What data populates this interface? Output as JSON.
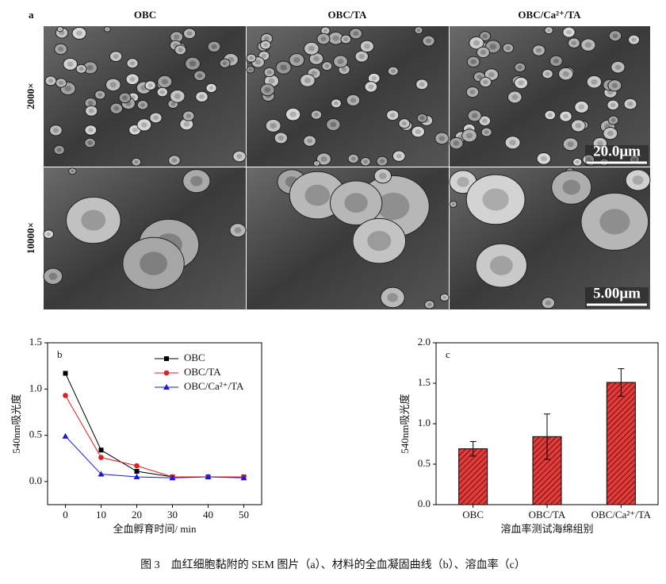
{
  "panel_a": {
    "label": "a",
    "columns": [
      "OBC",
      "OBC/TA",
      "OBC/Ca²⁺/TA"
    ],
    "rows": [
      "2000×",
      "10000×"
    ],
    "scale_bars": [
      "20.0μm",
      "5.00μm"
    ]
  },
  "chart_data": [
    {
      "type": "line",
      "label": "b",
      "x_label": "全血孵育时间/ min",
      "y_label": "540nm吸光度",
      "x": [
        0,
        10,
        20,
        30,
        40,
        50
      ],
      "series": [
        {
          "name": "OBC",
          "color": "#000000",
          "marker": "square",
          "values": [
            1.17,
            0.34,
            0.11,
            0.05,
            0.05,
            0.05
          ]
        },
        {
          "name": "OBC/TA",
          "color": "#e02020",
          "marker": "circle",
          "values": [
            0.93,
            0.26,
            0.17,
            0.05,
            0.05,
            0.05
          ]
        },
        {
          "name": "OBC/Ca²⁺/TA",
          "color": "#1a1adc",
          "marker": "triangle",
          "values": [
            0.49,
            0.08,
            0.05,
            0.04,
            0.05,
            0.04
          ]
        }
      ],
      "xlim": [
        -5,
        55
      ],
      "xticks": [
        0,
        10,
        20,
        30,
        40,
        50
      ],
      "ylim": [
        -0.25,
        1.5
      ],
      "yticks": [
        {
          "value": 0,
          "label": "0.0"
        },
        0.5,
        {
          "value": 1,
          "label": "1.0"
        },
        1.5
      ]
    },
    {
      "type": "bar",
      "label": "c",
      "x_label": "溶血率测试海绵组别",
      "y_label": "540nm吸光度",
      "categories": [
        "OBC",
        "OBC/TA",
        "OBC/Ca²⁺/TA"
      ],
      "values": [
        0.69,
        0.84,
        1.51
      ],
      "errors": [
        0.09,
        0.28,
        0.17
      ],
      "color": "#e03c3c",
      "hatch": true,
      "ylim": [
        0,
        2
      ],
      "yticks": [
        {
          "value": 0,
          "label": "0.0"
        },
        0.5,
        {
          "value": 1,
          "label": "1.0"
        },
        1.5,
        {
          "value": 2,
          "label": "2.0"
        }
      ]
    }
  ],
  "caption": "图 3　血红细胞黏附的 SEM 图片（a）、材料的全血凝固曲线（b）、溶血率（c）"
}
